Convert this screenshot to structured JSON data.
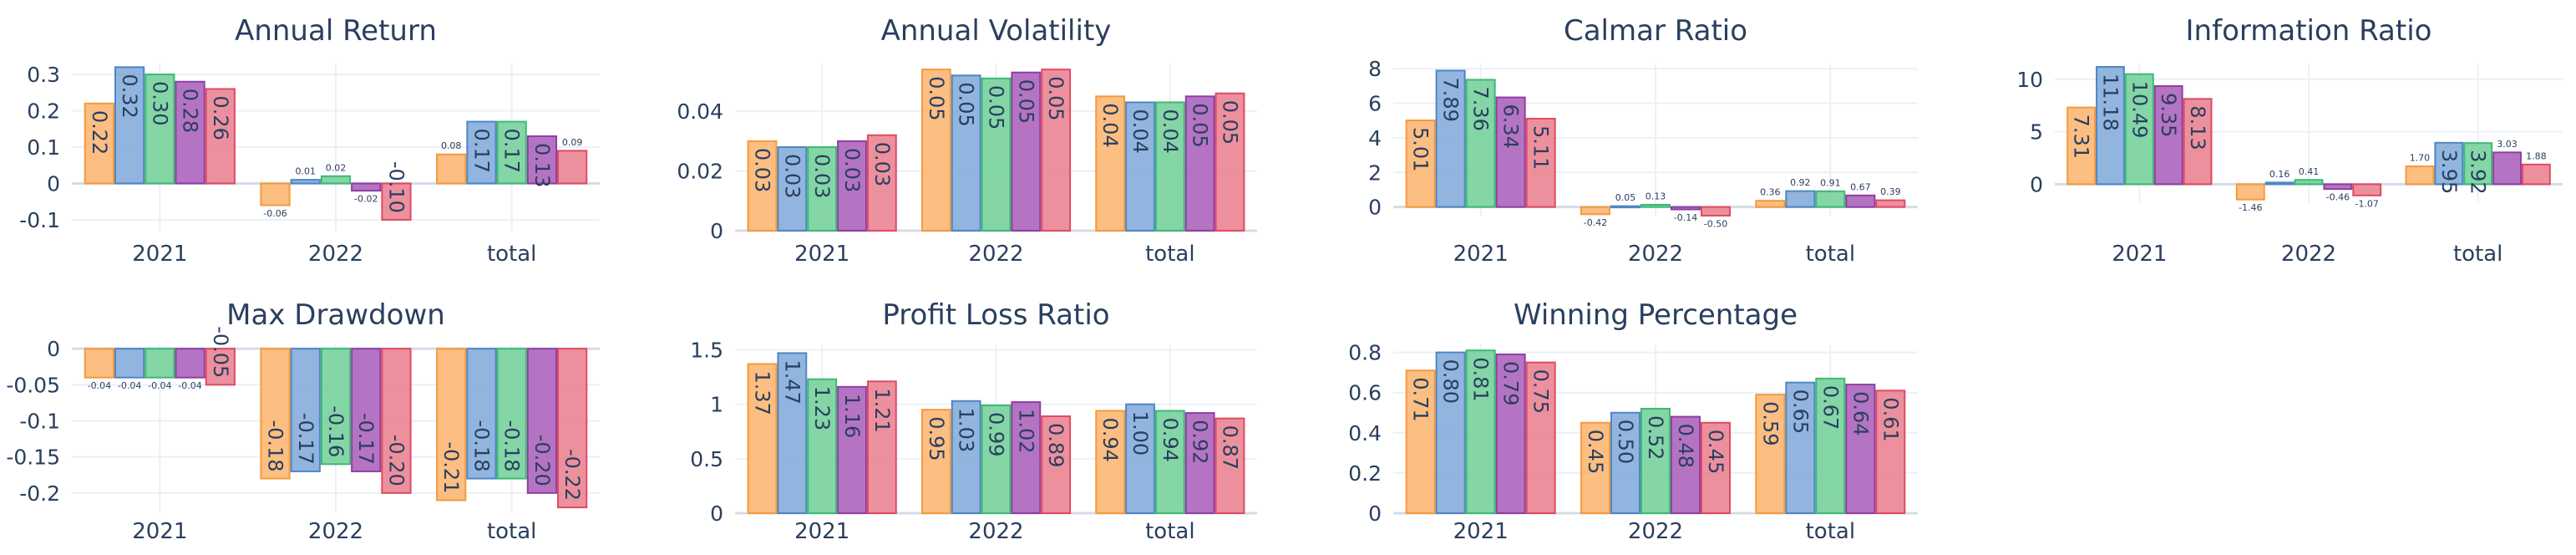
{
  "colors": {
    "series": [
      "#FDB36B",
      "#7EA8D8",
      "#6FCF97",
      "#A85CB8",
      "#EA7C8C"
    ],
    "stroke": [
      "#F59A3C",
      "#4F86C6",
      "#3DBA72",
      "#8E3FA3",
      "#E04A63"
    ],
    "title": "#2A3F5F",
    "tick": "#2A3F5F",
    "grid": "#EBF0F8",
    "zeroline": "#EBF0F8"
  },
  "chart_data": [
    {
      "type": "bar",
      "title": "Annual Return",
      "categories": [
        "2021",
        "2022",
        "total"
      ],
      "yticks": [
        "-0.1",
        "0",
        "0.1",
        "0.2",
        "0.3"
      ],
      "ytick_values": [
        -0.1,
        0,
        0.1,
        0.2,
        0.3
      ],
      "ylim": [
        -0.13,
        0.33
      ],
      "series": [
        {
          "values": [
            0.22,
            -0.06,
            0.08
          ],
          "labels": [
            "0.22",
            "-0.06",
            "0.08"
          ]
        },
        {
          "values": [
            0.32,
            0.01,
            0.17
          ],
          "labels": [
            "0.32",
            "0.01",
            "0.17"
          ]
        },
        {
          "values": [
            0.3,
            0.02,
            0.17
          ],
          "labels": [
            "0.30",
            "0.02",
            "0.17"
          ]
        },
        {
          "values": [
            0.28,
            -0.02,
            0.13
          ],
          "labels": [
            "0.28",
            "-0.02",
            "0.13"
          ]
        },
        {
          "values": [
            0.26,
            -0.1,
            0.09
          ],
          "labels": [
            "0.26",
            "-0.10",
            "0.09"
          ]
        }
      ]
    },
    {
      "type": "bar",
      "title": "Annual Volatility",
      "categories": [
        "2021",
        "2022",
        "total"
      ],
      "yticks": [
        "0",
        "0.02",
        "0.04"
      ],
      "ytick_values": [
        0,
        0.02,
        0.04
      ],
      "ylim": [
        0,
        0.056
      ],
      "series": [
        {
          "values": [
            0.03,
            0.054,
            0.045
          ],
          "labels": [
            "0.03",
            "0.05",
            "0.04"
          ]
        },
        {
          "values": [
            0.028,
            0.052,
            0.043
          ],
          "labels": [
            "0.03",
            "0.05",
            "0.04"
          ]
        },
        {
          "values": [
            0.028,
            0.051,
            0.043
          ],
          "labels": [
            "0.03",
            "0.05",
            "0.04"
          ]
        },
        {
          "values": [
            0.03,
            0.053,
            0.045
          ],
          "labels": [
            "0.03",
            "0.05",
            "0.05"
          ]
        },
        {
          "values": [
            0.032,
            0.054,
            0.046
          ],
          "labels": [
            "0.03",
            "0.05",
            "0.05"
          ]
        }
      ]
    },
    {
      "type": "bar",
      "title": "Calmar Ratio",
      "categories": [
        "2021",
        "2022",
        "total"
      ],
      "yticks": [
        "0",
        "2",
        "4",
        "6",
        "8"
      ],
      "ytick_values": [
        0,
        2,
        4,
        6,
        8
      ],
      "ylim": [
        -0.5,
        8.3
      ],
      "series": [
        {
          "values": [
            5.01,
            -0.42,
            0.36
          ],
          "labels": [
            "5.01",
            "-0.42",
            "0.36"
          ]
        },
        {
          "values": [
            7.89,
            0.05,
            0.92
          ],
          "labels": [
            "7.89",
            "0.05",
            "0.92"
          ]
        },
        {
          "values": [
            7.36,
            0.13,
            0.91
          ],
          "labels": [
            "7.36",
            "0.13",
            "0.91"
          ]
        },
        {
          "values": [
            6.34,
            -0.14,
            0.67
          ],
          "labels": [
            "6.34",
            "-0.14",
            "0.67"
          ]
        },
        {
          "values": [
            5.11,
            -0.5,
            0.39
          ],
          "labels": [
            "5.11",
            "-0.50",
            "0.39"
          ]
        }
      ]
    },
    {
      "type": "bar",
      "title": "Information Ratio",
      "categories": [
        "2021",
        "2022",
        "total"
      ],
      "yticks": [
        "0",
        "5",
        "10"
      ],
      "ytick_values": [
        0,
        5,
        10
      ],
      "ylim": [
        -1.8,
        11.5
      ],
      "series": [
        {
          "values": [
            7.31,
            -1.46,
            1.7
          ],
          "labels": [
            "7.31",
            "-1.46",
            "1.70"
          ]
        },
        {
          "values": [
            11.18,
            0.16,
            3.95
          ],
          "labels": [
            "11.18",
            "0.16",
            "3.95"
          ]
        },
        {
          "values": [
            10.49,
            0.41,
            3.92
          ],
          "labels": [
            "10.49",
            "0.41",
            "3.92"
          ]
        },
        {
          "values": [
            9.35,
            -0.46,
            3.03
          ],
          "labels": [
            "9.35",
            "-0.46",
            "3.03"
          ]
        },
        {
          "values": [
            8.13,
            -1.07,
            1.88
          ],
          "labels": [
            "8.13",
            "-1.07",
            "1.88"
          ]
        }
      ]
    },
    {
      "type": "bar",
      "title": "Max Drawdown",
      "categories": [
        "2021",
        "2022",
        "total"
      ],
      "yticks": [
        "-0.2",
        "-0.15",
        "-0.1",
        "-0.05",
        "0"
      ],
      "ytick_values": [
        -0.2,
        -0.15,
        -0.1,
        -0.05,
        0
      ],
      "ylim": [
        -0.228,
        0.006
      ],
      "series": [
        {
          "values": [
            -0.04,
            -0.18,
            -0.21
          ],
          "labels": [
            "-0.04",
            "-0.18",
            "-0.21"
          ]
        },
        {
          "values": [
            -0.04,
            -0.17,
            -0.18
          ],
          "labels": [
            "-0.04",
            "-0.17",
            "-0.18"
          ]
        },
        {
          "values": [
            -0.04,
            -0.16,
            -0.18
          ],
          "labels": [
            "-0.04",
            "-0.16",
            "-0.18"
          ]
        },
        {
          "values": [
            -0.04,
            -0.17,
            -0.2
          ],
          "labels": [
            "-0.04",
            "-0.17",
            "-0.20"
          ]
        },
        {
          "values": [
            -0.05,
            -0.2,
            -0.22
          ],
          "labels": [
            "-0.05",
            "-0.20",
            "-0.22"
          ]
        }
      ]
    },
    {
      "type": "bar",
      "title": "Profit Loss Ratio",
      "categories": [
        "2021",
        "2022",
        "total"
      ],
      "yticks": [
        "0",
        "0.5",
        "1",
        "1.5"
      ],
      "ytick_values": [
        0,
        0.5,
        1,
        1.5
      ],
      "ylim": [
        0,
        1.55
      ],
      "series": [
        {
          "values": [
            1.37,
            0.95,
            0.94
          ],
          "labels": [
            "1.37",
            "0.95",
            "0.94"
          ]
        },
        {
          "values": [
            1.47,
            1.03,
            1.0
          ],
          "labels": [
            "1.47",
            "1.03",
            "1.00"
          ]
        },
        {
          "values": [
            1.23,
            0.99,
            0.94
          ],
          "labels": [
            "1.23",
            "0.99",
            "0.94"
          ]
        },
        {
          "values": [
            1.16,
            1.02,
            0.92
          ],
          "labels": [
            "1.16",
            "1.02",
            "0.92"
          ]
        },
        {
          "values": [
            1.21,
            0.89,
            0.87
          ],
          "labels": [
            "1.21",
            "0.89",
            "0.87"
          ]
        }
      ]
    },
    {
      "type": "bar",
      "title": "Winning Percentage",
      "categories": [
        "2021",
        "2022",
        "total"
      ],
      "yticks": [
        "0",
        "0.2",
        "0.4",
        "0.6",
        "0.8"
      ],
      "ytick_values": [
        0,
        0.2,
        0.4,
        0.6,
        0.8
      ],
      "ylim": [
        0,
        0.84
      ],
      "series": [
        {
          "values": [
            0.71,
            0.45,
            0.59
          ],
          "labels": [
            "0.71",
            "0.45",
            "0.59"
          ]
        },
        {
          "values": [
            0.8,
            0.5,
            0.65
          ],
          "labels": [
            "0.80",
            "0.50",
            "0.65"
          ]
        },
        {
          "values": [
            0.81,
            0.52,
            0.67
          ],
          "labels": [
            "0.81",
            "0.52",
            "0.67"
          ]
        },
        {
          "values": [
            0.79,
            0.48,
            0.64
          ],
          "labels": [
            "0.79",
            "0.48",
            "0.64"
          ]
        },
        {
          "values": [
            0.75,
            0.45,
            0.61
          ],
          "labels": [
            "0.75",
            "0.45",
            "0.61"
          ]
        }
      ]
    }
  ]
}
